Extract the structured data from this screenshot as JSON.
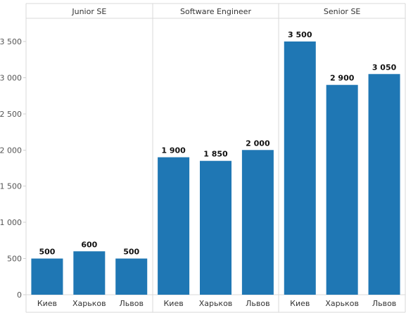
{
  "chart_data": {
    "type": "bar",
    "panels": [
      {
        "name": "Junior SE",
        "categories": [
          "Киев",
          "Харьков",
          "Львов"
        ],
        "values": [
          500,
          600,
          500
        ]
      },
      {
        "name": "Software Engineer",
        "categories": [
          "Киев",
          "Харьков",
          "Львов"
        ],
        "values": [
          1900,
          1850,
          2000
        ]
      },
      {
        "name": "Senior SE",
        "categories": [
          "Киев",
          "Харьков",
          "Львов"
        ],
        "values": [
          3500,
          2900,
          3050
        ]
      }
    ],
    "value_labels": [
      [
        "500",
        "600",
        "500"
      ],
      [
        "1 900",
        "1 850",
        "2 000"
      ],
      [
        "3 500",
        "2 900",
        "3 050"
      ]
    ],
    "y_ticks": [
      0,
      500,
      1000,
      1500,
      2000,
      2500,
      3000,
      3500
    ],
    "y_tick_labels": [
      "0",
      "500",
      "1 000",
      "1 500",
      "2 000",
      "2 500",
      "3 000",
      "3 500"
    ],
    "ylim": [
      0,
      3800
    ],
    "bar_color": "#1f77b4",
    "grid": false,
    "title": "",
    "xlabel": "",
    "ylabel": ""
  }
}
